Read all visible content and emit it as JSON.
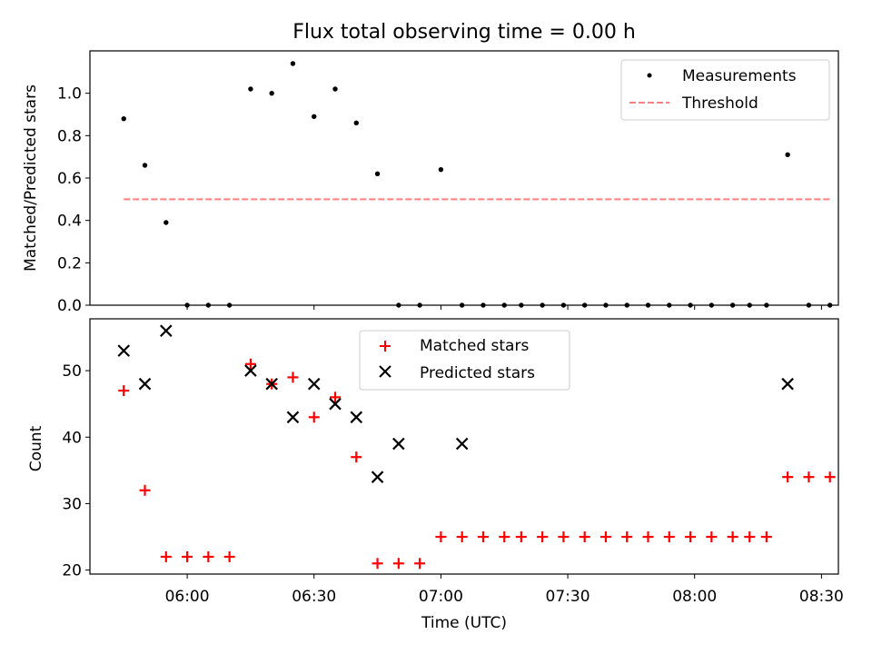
{
  "chart_data": [
    {
      "type": "scatter",
      "title": "Flux total observing time = 0.00 h",
      "xlabel": "",
      "ylabel": "Matched/Predicted stars",
      "xlim": [
        "05:37",
        "08:34"
      ],
      "ylim": [
        0,
        1.2
      ],
      "yticks": [
        0.0,
        0.2,
        0.4,
        0.6,
        0.8,
        1.0
      ],
      "ytick_labels": [
        "0.0",
        "0.2",
        "0.4",
        "0.6",
        "0.8",
        "1.0"
      ],
      "xticks": [
        "06:00",
        "06:30",
        "07:00",
        "07:30",
        "08:00",
        "08:30"
      ],
      "grid": false,
      "legend_position": "top-right",
      "legend": [
        "Measurements",
        "Threshold"
      ],
      "series": [
        {
          "name": "Measurements",
          "marker": "dot",
          "color": "#000000",
          "x": [
            "05:45",
            "05:50",
            "05:55",
            "06:00",
            "06:05",
            "06:10",
            "06:15",
            "06:20",
            "06:25",
            "06:30",
            "06:35",
            "06:40",
            "06:45",
            "06:50",
            "06:55",
            "07:00",
            "07:05",
            "07:10",
            "07:15",
            "07:19",
            "07:24",
            "07:29",
            "07:34",
            "07:39",
            "07:44",
            "07:49",
            "07:54",
            "07:59",
            "08:04",
            "08:09",
            "08:13",
            "08:17",
            "08:22",
            "08:27",
            "08:32"
          ],
          "values": [
            0.88,
            0.66,
            0.39,
            0.0,
            0.0,
            0.0,
            1.02,
            1.0,
            1.14,
            0.89,
            1.02,
            0.86,
            0.62,
            0.0,
            0.0,
            0.64,
            0.0,
            0.0,
            0.0,
            0.0,
            0.0,
            0.0,
            0.0,
            0.0,
            0.0,
            0.0,
            0.0,
            0.0,
            0.0,
            0.0,
            0.0,
            0.0,
            0.71,
            0.0,
            0.0
          ]
        },
        {
          "name": "Threshold",
          "style": "dashed",
          "color": "#ff7f7f",
          "x": [
            "05:45",
            "08:32"
          ],
          "values": [
            0.5,
            0.5
          ]
        }
      ]
    },
    {
      "type": "scatter",
      "title": "",
      "xlabel": "Time (UTC)",
      "ylabel": "Count",
      "xlim": [
        "05:37",
        "08:34"
      ],
      "ylim": [
        19.4,
        57.8
      ],
      "yticks": [
        20,
        30,
        40,
        50
      ],
      "ytick_labels": [
        "20",
        "30",
        "40",
        "50"
      ],
      "xticks": [
        "06:00",
        "06:30",
        "07:00",
        "07:30",
        "08:00",
        "08:30"
      ],
      "grid": false,
      "legend_position": "top-center",
      "legend": [
        "Matched stars",
        "Predicted stars"
      ],
      "series": [
        {
          "name": "Matched stars",
          "marker": "plus",
          "color": "#ff0000",
          "x": [
            "05:45",
            "05:50",
            "05:55",
            "06:00",
            "06:05",
            "06:10",
            "06:15",
            "06:20",
            "06:25",
            "06:30",
            "06:35",
            "06:40",
            "06:45",
            "06:50",
            "06:55",
            "07:00",
            "07:05",
            "07:10",
            "07:15",
            "07:19",
            "07:24",
            "07:29",
            "07:34",
            "07:39",
            "07:44",
            "07:49",
            "07:54",
            "07:59",
            "08:04",
            "08:09",
            "08:13",
            "08:17",
            "08:22",
            "08:27",
            "08:32"
          ],
          "values": [
            47,
            32,
            22,
            22,
            22,
            22,
            51,
            48,
            49,
            43,
            46,
            37,
            21,
            21,
            21,
            25,
            25,
            25,
            25,
            25,
            25,
            25,
            25,
            25,
            25,
            25,
            25,
            25,
            25,
            25,
            25,
            25,
            34,
            34,
            34
          ]
        },
        {
          "name": "Predicted stars",
          "marker": "x",
          "color": "#000000",
          "x": [
            "05:45",
            "05:50",
            "05:55",
            "06:15",
            "06:20",
            "06:25",
            "06:30",
            "06:35",
            "06:40",
            "06:45",
            "06:50",
            "07:05",
            "08:22"
          ],
          "values": [
            53,
            48,
            56,
            50,
            48,
            43,
            48,
            45,
            43,
            34,
            39,
            39,
            48
          ]
        }
      ]
    }
  ]
}
